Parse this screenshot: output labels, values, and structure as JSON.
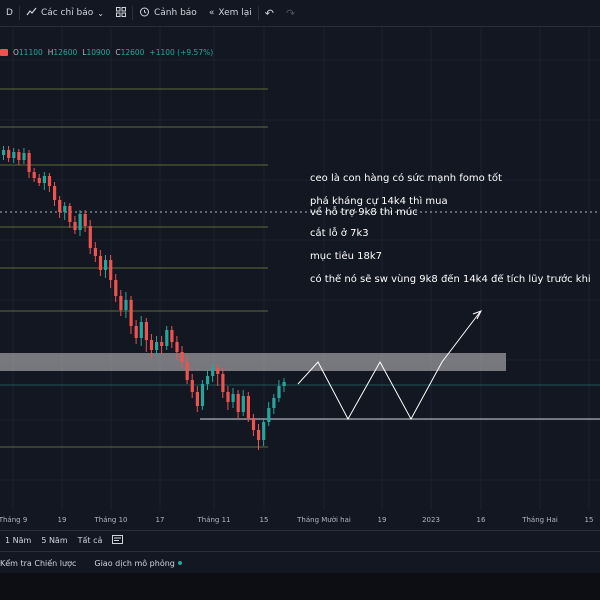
{
  "toolbar": {
    "d_label": "D",
    "indicators_label": "Các chỉ báo",
    "alert_label": "Cảnh báo",
    "replay_label": "Xem lại"
  },
  "ohlc": {
    "o_key": "O",
    "o_val": "11100",
    "h_key": "H",
    "h_val": "12600",
    "l_key": "L",
    "l_val": "10900",
    "c_key": "C",
    "c_val": "12600",
    "change": "+1100 (+9.57%)"
  },
  "annotations": [
    "ceo là con hàng có sức mạnh fomo tốt",
    "phá kháng cự 14k4 thì mua",
    "về hỗ trợ 9k8 thì múc",
    "cắt lỗ ở 7k3",
    "mục tiêu 18k7",
    "có thể nó sẽ sw vùng 9k8 đến 14k4 để tích lũy trước khi"
  ],
  "xaxis_labels": [
    "Tháng 9",
    "19",
    "Tháng 10",
    "17",
    "Tháng 11",
    "15",
    "Tháng Mười hai",
    "19",
    "2023",
    "16",
    "Tháng Hai",
    "15"
  ],
  "range_buttons": [
    "1 Năm",
    "5 Năm",
    "Tất cả"
  ],
  "bottom_tabs": {
    "strategy": "Kểm tra Chiến lược",
    "paper": "Giao dịch mô phỏng"
  },
  "colors": {
    "up": "#26a69a",
    "down": "#ef5350",
    "background": "#131722",
    "level_line": "#5d6b3a",
    "zone": "#c8c8c8",
    "projection": "#ffffff"
  },
  "icons": {
    "indicators": "chart-line-icon",
    "templates": "grid-icon",
    "alert": "alarm-clock-icon",
    "replay": "rewind-icon",
    "undo": "undo-icon",
    "redo": "redo-icon",
    "screenshot": "screenshot-icon"
  }
}
